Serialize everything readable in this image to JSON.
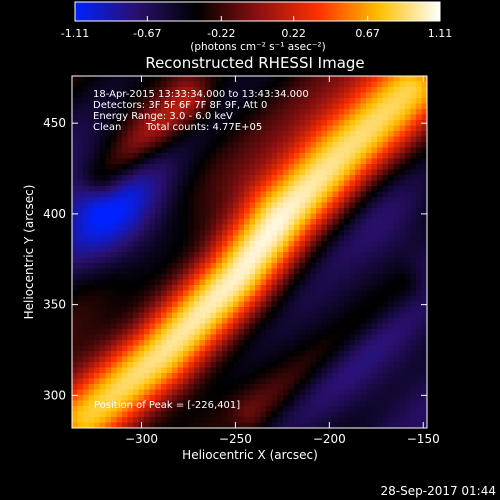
{
  "colors": {
    "background": "#000000",
    "foreground": "#ffffff",
    "colormap_stops": [
      "#0022ff",
      "#2a1070",
      "#000000",
      "#8a1010",
      "#ff3000",
      "#ffc000",
      "#ffffff"
    ]
  },
  "colorbar": {
    "ticks": [
      "-1.11",
      "-0.67",
      "-0.22",
      "0.22",
      "0.67",
      "1.11"
    ],
    "tick_values": [
      -1.11,
      -0.67,
      -0.22,
      0.22,
      0.67,
      1.11
    ],
    "range": [
      -1.11,
      1.11
    ],
    "units_label": "(photons cm⁻² s⁻¹ asec⁻²)"
  },
  "plot": {
    "title": "Reconstructed RHESSI Image",
    "info_line1": "18-Apr-2015 13:33:34.000 to 13:43:34.000",
    "info_line2": "Detectors: 3F 5F 6F 7F 8F 9F, Att 0",
    "info_line3": "Energy Range: 3.0 - 6.0 keV",
    "info_line4_left": "Clean",
    "info_line4_right": "Total counts: 4.77E+05",
    "peak_label": "Position of Peak = [-226,401]",
    "xlabel": "Heliocentric X (arcsec)",
    "ylabel": "Heliocentric Y (arcsec)"
  },
  "footer": {
    "timestamp": "28-Sep-2017 01:44"
  },
  "chart_data": {
    "type": "heatmap",
    "title": "Reconstructed RHESSI Image",
    "xlabel": "Heliocentric X (arcsec)",
    "ylabel": "Heliocentric Y (arcsec)",
    "xlim": [
      -337,
      -148
    ],
    "ylim": [
      282,
      476
    ],
    "x_ticks": [
      -300,
      -250,
      -200,
      -150
    ],
    "x_tick_labels": [
      "−300",
      "−250",
      "−200",
      "−150"
    ],
    "y_ticks": [
      300,
      350,
      400,
      450
    ],
    "y_tick_labels": [
      "300",
      "350",
      "400",
      "450"
    ],
    "value_range": [
      -1.11,
      1.11
    ],
    "peak": {
      "x": -226,
      "y": 401
    },
    "ridge": {
      "points": [
        [
          -330,
          290
        ],
        [
          -290,
          322
        ],
        [
          -250,
          365
        ],
        [
          -226,
          401
        ],
        [
          -195,
          435
        ],
        [
          -160,
          470
        ]
      ],
      "amplitude": [
        0.72,
        0.85,
        1.0,
        1.11,
        0.98,
        0.85
      ],
      "width_arcsec": 16
    },
    "secondary_features": [
      {
        "kind": "positive_band",
        "points": [
          [
            -320,
            420
          ],
          [
            -300,
            440
          ],
          [
            -275,
            462
          ]
        ],
        "amplitude": 0.45,
        "width_arcsec": 8
      },
      {
        "kind": "positive_band",
        "points": [
          [
            -240,
            290
          ],
          [
            -200,
            325
          ],
          [
            -160,
            360
          ]
        ],
        "amplitude": 0.3,
        "width_arcsec": 8
      },
      {
        "kind": "negative_region",
        "center": [
          -320,
          405
        ],
        "radius_arcsec": 25,
        "amplitude": -1.05
      },
      {
        "kind": "negative_region",
        "center": [
          -180,
          325
        ],
        "radius_arcsec": 50,
        "amplitude": -0.7
      },
      {
        "kind": "negative_region",
        "center": [
          -165,
          395
        ],
        "radius_arcsec": 22,
        "amplitude": -0.55
      }
    ]
  }
}
